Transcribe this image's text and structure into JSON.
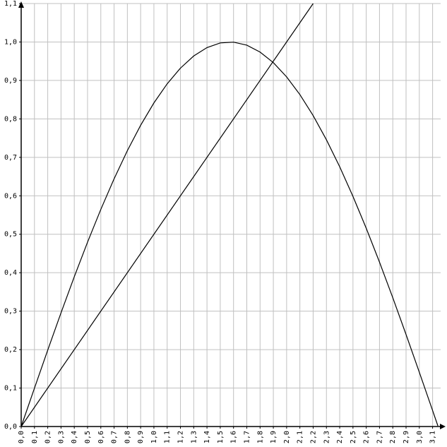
{
  "chart_data": {
    "type": "line",
    "xlim": [
      0,
      3.15
    ],
    "ylim": [
      0,
      1.1
    ],
    "grid": true,
    "xticks": [
      {
        "value": 0,
        "label": "0,0"
      },
      {
        "value": 0.1,
        "label": "0,1"
      },
      {
        "value": 0.2,
        "label": "0,2"
      },
      {
        "value": 0.3,
        "label": "0,3"
      },
      {
        "value": 0.4,
        "label": "0,4"
      },
      {
        "value": 0.5,
        "label": "0,5"
      },
      {
        "value": 0.6,
        "label": "0,6"
      },
      {
        "value": 0.7,
        "label": "0,7"
      },
      {
        "value": 0.8,
        "label": "0,8"
      },
      {
        "value": 0.9,
        "label": "0,9"
      },
      {
        "value": 1.0,
        "label": "1,0"
      },
      {
        "value": 1.1,
        "label": "1,1"
      },
      {
        "value": 1.2,
        "label": "1,2"
      },
      {
        "value": 1.3,
        "label": "1,3"
      },
      {
        "value": 1.4,
        "label": "1,4"
      },
      {
        "value": 1.5,
        "label": "1,5"
      },
      {
        "value": 1.6,
        "label": "1,6"
      },
      {
        "value": 1.7,
        "label": "1,7"
      },
      {
        "value": 1.8,
        "label": "1,8"
      },
      {
        "value": 1.9,
        "label": "1,9"
      },
      {
        "value": 2.0,
        "label": "2,0"
      },
      {
        "value": 2.1,
        "label": "2,1"
      },
      {
        "value": 2.2,
        "label": "2,2"
      },
      {
        "value": 2.3,
        "label": "2,3"
      },
      {
        "value": 2.4,
        "label": "2,4"
      },
      {
        "value": 2.5,
        "label": "2,5"
      },
      {
        "value": 2.6,
        "label": "2,6"
      },
      {
        "value": 2.7,
        "label": "2,7"
      },
      {
        "value": 2.8,
        "label": "2,8"
      },
      {
        "value": 2.9,
        "label": "2,9"
      },
      {
        "value": 3.0,
        "label": "3,0"
      },
      {
        "value": 3.1,
        "label": "3,1"
      }
    ],
    "yticks": [
      {
        "value": 0,
        "label": "0,0"
      },
      {
        "value": 0.1,
        "label": "0,1"
      },
      {
        "value": 0.2,
        "label": "0,2"
      },
      {
        "value": 0.3,
        "label": "0,3"
      },
      {
        "value": 0.4,
        "label": "0,4"
      },
      {
        "value": 0.5,
        "label": "0,5"
      },
      {
        "value": 0.6,
        "label": "0,6"
      },
      {
        "value": 0.7,
        "label": "0,7"
      },
      {
        "value": 0.8,
        "label": "0,8"
      },
      {
        "value": 0.9,
        "label": "0,9"
      },
      {
        "value": 1.0,
        "label": "1,0"
      },
      {
        "value": 1.1,
        "label": "1,1"
      }
    ],
    "series": [
      {
        "color": "#000000",
        "x": [
          0,
          0.1,
          0.2,
          0.3,
          0.4,
          0.5,
          0.6,
          0.7,
          0.8,
          0.9,
          1.0,
          1.1,
          1.2,
          1.3,
          1.4,
          1.5,
          1.6,
          1.7,
          1.8,
          1.9,
          2.0,
          2.1,
          2.2,
          2.3,
          2.4,
          2.5,
          2.6,
          2.7,
          2.8,
          2.9,
          3.0,
          3.1,
          3.14
        ],
        "values": [
          0,
          0.0998,
          0.1987,
          0.2955,
          0.3894,
          0.4794,
          0.5646,
          0.6442,
          0.7174,
          0.7833,
          0.8415,
          0.8912,
          0.932,
          0.9636,
          0.9854,
          0.9975,
          0.9996,
          0.9917,
          0.9738,
          0.9463,
          0.9093,
          0.8632,
          0.8085,
          0.7457,
          0.6755,
          0.5985,
          0.5155,
          0.4274,
          0.335,
          0.2392,
          0.1411,
          0.0416,
          0.0016
        ]
      },
      {
        "color": "#000000",
        "x": [
          0,
          2.2
        ],
        "values": [
          0,
          1.1
        ]
      }
    ]
  }
}
